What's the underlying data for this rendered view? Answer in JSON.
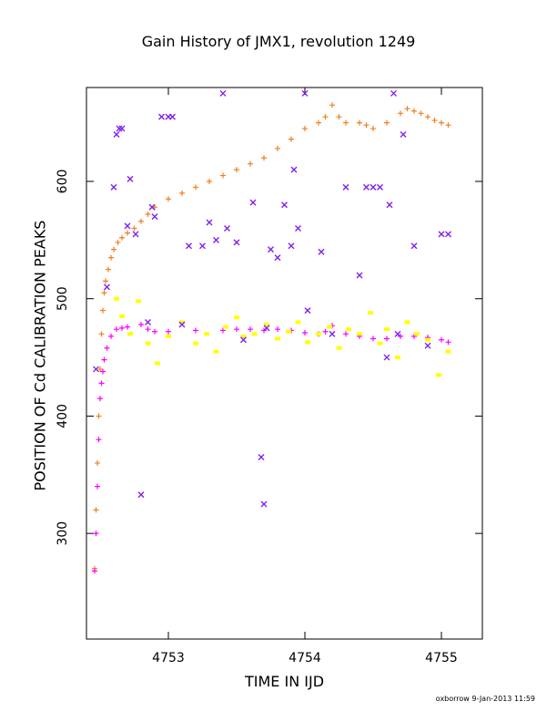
{
  "chart_data": {
    "type": "scatter",
    "title": "Gain History of JMX1, revolution 1249",
    "xlabel": "TIME IN IJD",
    "ylabel": "POSITION OF Cd CALIBRATION PEAKS",
    "xlim": [
      4752.4,
      4755.3
    ],
    "ylim": [
      210,
      680
    ],
    "x_ticks": [
      4753,
      4754,
      4755
    ],
    "y_ticks": [
      300,
      400,
      500,
      600
    ],
    "grid": false,
    "series": [
      {
        "marker": "plus",
        "color": "#f08020",
        "x": [
          4752.46,
          4752.47,
          4752.48,
          4752.49,
          4752.5,
          4752.51,
          4752.52,
          4752.53,
          4752.54,
          4752.56,
          4752.58,
          4752.6,
          4752.63,
          4752.66,
          4752.7,
          4752.75,
          4752.8,
          4752.85,
          4752.9,
          4753.0,
          4753.1,
          4753.2,
          4753.3,
          4753.4,
          4753.5,
          4753.6,
          4753.7,
          4753.8,
          4753.9,
          4754.0,
          4754.1,
          4754.15,
          4754.2,
          4754.25,
          4754.3,
          4754.4,
          4754.45,
          4754.5,
          4754.6,
          4754.7,
          4754.75,
          4754.8,
          4754.85,
          4754.9,
          4754.95,
          4755.0,
          4755.05
        ],
        "y": [
          270,
          320,
          360,
          400,
          440,
          470,
          490,
          505,
          515,
          525,
          535,
          542,
          548,
          552,
          556,
          560,
          566,
          572,
          578,
          585,
          590,
          595,
          600,
          605,
          610,
          615,
          620,
          628,
          636,
          645,
          650,
          655,
          665,
          655,
          650,
          650,
          648,
          645,
          650,
          658,
          662,
          660,
          658,
          655,
          652,
          650,
          648
        ]
      },
      {
        "marker": "plus",
        "color": "#ff00ff",
        "x": [
          4752.46,
          4752.47,
          4752.48,
          4752.49,
          4752.5,
          4752.51,
          4752.52,
          4752.53,
          4752.55,
          4752.58,
          4752.62,
          4752.66,
          4752.7,
          4752.8,
          4752.85,
          4752.9,
          4753.0,
          4753.2,
          4753.4,
          4753.5,
          4753.6,
          4753.7,
          4753.8,
          4753.9,
          4754.0,
          4754.1,
          4754.15,
          4754.2,
          4754.3,
          4754.4,
          4754.5,
          4754.6,
          4754.7,
          4754.8,
          4754.9,
          4755.0,
          4755.05
        ],
        "y": [
          268,
          300,
          340,
          380,
          415,
          428,
          438,
          448,
          458,
          468,
          474,
          475,
          476,
          478,
          474,
          472,
          472,
          473,
          473,
          474,
          474,
          473,
          474,
          473,
          471,
          470,
          472,
          477,
          470,
          468,
          466,
          466,
          468,
          468,
          467,
          465,
          463
        ]
      },
      {
        "marker": "square",
        "color": "#ffff00",
        "x": [
          4752.62,
          4752.66,
          4752.72,
          4752.78,
          4752.85,
          4752.92,
          4753.0,
          4753.1,
          4753.2,
          4753.28,
          4753.35,
          4753.42,
          4753.5,
          4753.55,
          4753.63,
          4753.72,
          4753.8,
          4753.88,
          4753.95,
          4754.02,
          4754.1,
          4754.18,
          4754.25,
          4754.32,
          4754.4,
          4754.48,
          4754.55,
          4754.6,
          4754.68,
          4754.75,
          4754.82,
          4754.9,
          4754.98,
          4755.05
        ],
        "y": [
          500,
          485,
          470,
          498,
          462,
          445,
          468,
          480,
          462,
          470,
          455,
          476,
          484,
          468,
          470,
          478,
          466,
          472,
          480,
          463,
          470,
          476,
          458,
          474,
          470,
          488,
          462,
          474,
          450,
          480,
          470,
          465,
          435,
          455
        ]
      },
      {
        "marker": "cross",
        "color": "#8020f0",
        "x": [
          4752.47,
          4752.55,
          4752.6,
          4752.62,
          4752.64,
          4752.66,
          4752.7,
          4752.72,
          4752.76,
          4752.8,
          4752.85,
          4752.88,
          4752.9,
          4752.95,
          4753.0,
          4753.03,
          4753.1,
          4753.15,
          4753.25,
          4753.3,
          4753.35,
          4753.4,
          4753.43,
          4753.5,
          4753.55,
          4753.62,
          4753.68,
          4753.7,
          4753.72,
          4753.75,
          4753.8,
          4753.85,
          4753.9,
          4753.92,
          4753.95,
          4754.0,
          4754.02,
          4754.12,
          4754.2,
          4754.3,
          4754.4,
          4754.45,
          4754.5,
          4754.55,
          4754.6,
          4754.62,
          4754.65,
          4754.68,
          4754.72,
          4754.8,
          4754.9,
          4755.0,
          4755.05
        ],
        "y": [
          440,
          510,
          595,
          640,
          645,
          645,
          562,
          602,
          555,
          333,
          480,
          578,
          570,
          655,
          655,
          655,
          478,
          545,
          545,
          565,
          550,
          675,
          560,
          548,
          465,
          582,
          365,
          325,
          475,
          542,
          535,
          580,
          545,
          610,
          560,
          675,
          490,
          540,
          470,
          595,
          520,
          595,
          595,
          595,
          450,
          580,
          675,
          470,
          640,
          545,
          460,
          555,
          555
        ]
      }
    ]
  },
  "footer": "oxborrow  9-Jan-2013 11:59"
}
